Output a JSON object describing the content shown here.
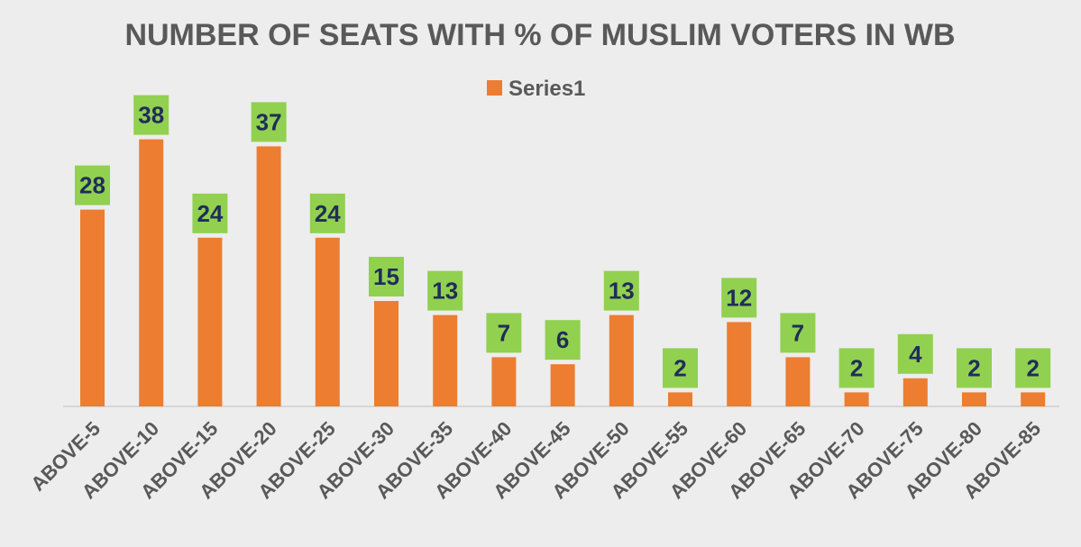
{
  "chart_data": {
    "type": "bar",
    "title": "NUMBER OF SEATS WITH % OF MUSLIM VOTERS IN WB",
    "xlabel": "",
    "ylabel": "",
    "categories": [
      "ABOVE-5",
      "ABOVE-10",
      "ABOVE-15",
      "ABOVE-20",
      "ABOVE-25",
      "ABOVE-30",
      "ABOVE-35",
      "ABOVE-40",
      "ABOVE-45",
      "ABOVE-50",
      "ABOVE-55",
      "ABOVE-60",
      "ABOVE-65",
      "ABOVE-70",
      "ABOVE-75",
      "ABOVE-80",
      "ABOVE-85"
    ],
    "series": [
      {
        "name": "Series1",
        "values": [
          28,
          38,
          24,
          37,
          24,
          15,
          13,
          7,
          6,
          13,
          2,
          12,
          7,
          2,
          4,
          2,
          2
        ]
      }
    ],
    "ylim": [
      0,
      38
    ],
    "grid": false,
    "legend_position": "top-center",
    "colors": {
      "bar": "#ed7d31",
      "label_box": "#92d050",
      "label_text": "#1f2d5a",
      "title": "#595959",
      "background": "#ededed",
      "axis": "#d0d0d0"
    }
  }
}
